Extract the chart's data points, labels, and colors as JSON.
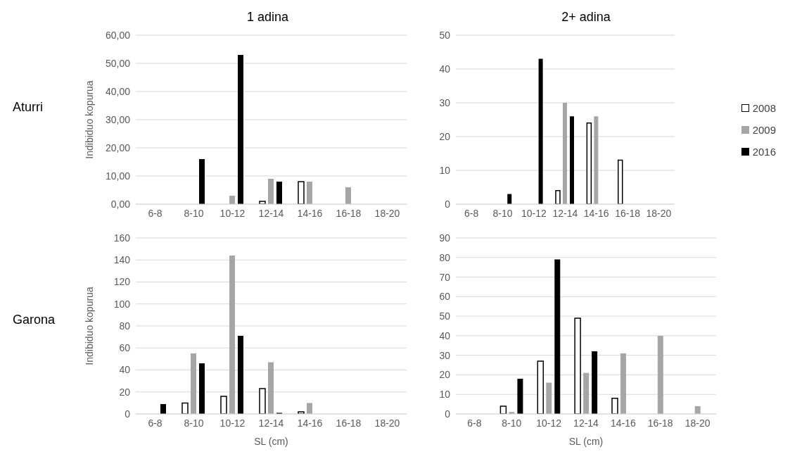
{
  "chart_data": [
    {
      "type": "bar",
      "title": "1 adina",
      "ylabel": "Indibiduo kopurua",
      "annotations": [
        "Aturri"
      ],
      "categories": [
        "6-8",
        "8-10",
        "10-12",
        "12-14",
        "14-16",
        "16-18",
        "18-20"
      ],
      "ylim": [
        0,
        60
      ],
      "yticks": [
        {
          "value": 0,
          "label": "0,00"
        },
        {
          "value": 10,
          "label": "10,00"
        },
        {
          "value": 20,
          "label": "20,00"
        },
        {
          "value": 30,
          "label": "30,00"
        },
        {
          "value": 40,
          "label": "40,00"
        },
        {
          "value": 50,
          "label": "50,00"
        },
        {
          "value": 60,
          "label": "60,00"
        }
      ],
      "grid": "y",
      "legend": false,
      "series": [
        {
          "color": "#ffffff",
          "values": [
            0,
            0,
            0,
            1,
            8,
            0,
            0
          ]
        },
        {
          "color": "#a6a6a6",
          "values": [
            0,
            0,
            3,
            9,
            8,
            6,
            0
          ]
        },
        {
          "color": "#000000",
          "values": [
            0,
            16,
            53,
            8,
            0,
            0,
            0
          ]
        }
      ]
    },
    {
      "type": "bar",
      "title": "2+ adina",
      "categories": [
        "6-8",
        "8-10",
        "10-12",
        "12-14",
        "14-16",
        "16-18",
        "18-20"
      ],
      "ylim": [
        0,
        50
      ],
      "yticks": [
        0,
        10,
        20,
        30,
        40,
        50
      ],
      "grid": "y",
      "legend": "right",
      "series": [
        {
          "name": "2008",
          "color": "#ffffff",
          "values": [
            0,
            0,
            0,
            4,
            24,
            13,
            0
          ]
        },
        {
          "name": "2009",
          "color": "#a6a6a6",
          "values": [
            0,
            0,
            0,
            30,
            26,
            0,
            0
          ]
        },
        {
          "name": "2016",
          "color": "#000000",
          "values": [
            0,
            3,
            43,
            26,
            0,
            0,
            0
          ]
        }
      ]
    },
    {
      "type": "bar",
      "xlabel": "SL (cm)",
      "ylabel": "Indibiduo kopurua",
      "annotations": [
        "Garona"
      ],
      "categories": [
        "6-8",
        "8-10",
        "10-12",
        "12-14",
        "14-16",
        "16-18",
        "18-20"
      ],
      "ylim": [
        0,
        160
      ],
      "yticks": [
        0,
        20,
        40,
        60,
        80,
        100,
        120,
        140,
        160
      ],
      "grid": "y",
      "legend": false,
      "series": [
        {
          "color": "#ffffff",
          "values": [
            0,
            10,
            16,
            23,
            2,
            0,
            0
          ]
        },
        {
          "color": "#a6a6a6",
          "values": [
            0,
            55,
            144,
            47,
            10,
            0,
            0
          ]
        },
        {
          "color": "#000000",
          "values": [
            9,
            46,
            71,
            1,
            0,
            0,
            0
          ]
        }
      ]
    },
    {
      "type": "bar",
      "xlabel": "SL (cm)",
      "categories": [
        "6-8",
        "8-10",
        "10-12",
        "12-14",
        "14-16",
        "16-18",
        "18-20"
      ],
      "ylim": [
        0,
        90
      ],
      "yticks": [
        0,
        10,
        20,
        30,
        40,
        50,
        60,
        70,
        80,
        90
      ],
      "grid": "y",
      "legend": false,
      "series": [
        {
          "color": "#ffffff",
          "values": [
            0,
            4,
            27,
            49,
            8,
            0,
            0
          ]
        },
        {
          "color": "#a6a6a6",
          "values": [
            0,
            1,
            16,
            21,
            31,
            40,
            4
          ]
        },
        {
          "color": "#000000",
          "values": [
            0,
            18,
            79,
            32,
            0,
            0,
            0
          ]
        }
      ]
    }
  ]
}
